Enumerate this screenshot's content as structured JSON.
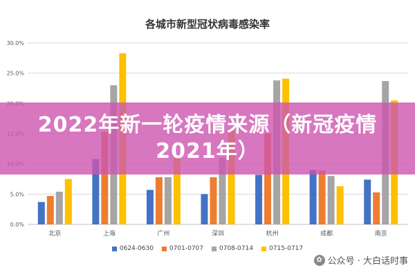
{
  "chart_data": {
    "type": "bar",
    "title": "各城市新型冠状病毒感染率",
    "categories": [
      "北京",
      "上海",
      "广州",
      "深圳",
      "杭州",
      "成都",
      "南京"
    ],
    "series": [
      {
        "name": "0624-0630",
        "values": [
          3.7,
          10.8,
          5.7,
          5.0,
          8.2,
          9.0,
          7.4
        ],
        "color": "#4472C4"
      },
      {
        "name": "0701-0707",
        "values": [
          4.7,
          15.3,
          7.8,
          7.8,
          15.0,
          8.9,
          5.3
        ],
        "color": "#ED7D31"
      },
      {
        "name": "0708-0714",
        "values": [
          5.4,
          23.0,
          7.8,
          11.0,
          23.8,
          8.0,
          23.7
        ],
        "color": "#A5A5A5"
      },
      {
        "name": "0715-0717",
        "values": [
          7.5,
          28.3,
          11.0,
          15.5,
          24.1,
          6.3,
          20.5
        ],
        "color": "#FFC000"
      }
    ],
    "y_ticks": [
      "0.0%",
      "5.0%",
      "10.0%",
      "15.0%",
      "20.0%",
      "25.0%",
      "30.0%"
    ],
    "ylim": [
      0,
      30
    ],
    "grid": true,
    "legend_position": "bottom",
    "xlabel": "",
    "ylabel": ""
  },
  "overlay": {
    "banner_text": "2022年新一轮疫情来源（新冠疫情2021年）",
    "banner_color": "#CD55AF"
  },
  "watermark": {
    "icon": "wechat-icon",
    "text": "公众号 · 大白话时事"
  }
}
